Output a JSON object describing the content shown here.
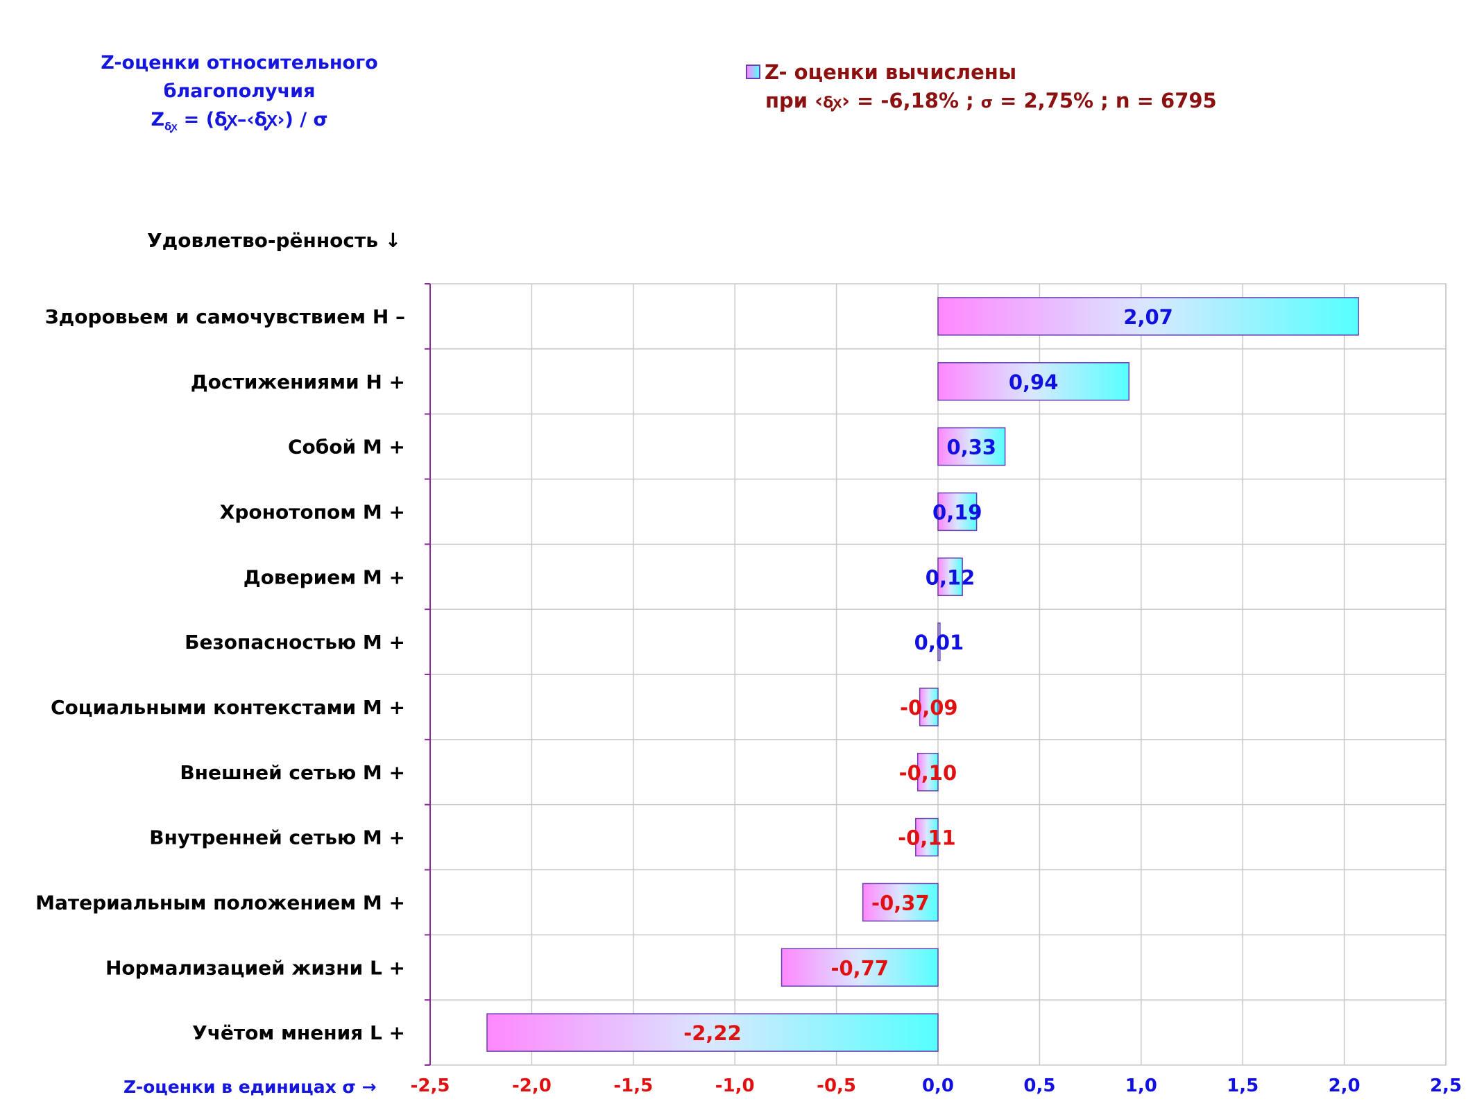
{
  "title": {
    "line1": "Z-оценки  относительного",
    "line2": "благополучия",
    "formula_z": "Z",
    "formula_sub": "δꭙ",
    "formula_rest": " = (δꭙ–‹δꭙ›)  / σ"
  },
  "legend": {
    "series_name": "Z- оценки вычислены",
    "params_prefix": "при ‹",
    "params_delta": "δꭙ",
    "params_rest": "›  = -6,18% ; ",
    "params_sigma": "σ",
    "params_tail": " = 2,75% ; n = 6795"
  },
  "y_caption": "Удовлетво-рённость ↓",
  "x_caption": "Z-оценки в единицах σ →",
  "colors": {
    "bar_gradient_start": "#ff88ff",
    "bar_gradient_end": "#55ffff",
    "bar_border": "#6a3fb0",
    "positive_label": "#1010e0",
    "negative_label": "#e01010",
    "grid": "#c8c8c8",
    "axis": "#8a2b9a"
  },
  "chart_data": {
    "type": "bar",
    "orientation": "horizontal",
    "categories": [
      "Здоровьем и самочувствием  H –",
      "Достижениями  H +",
      "Собой  M +",
      "Хронотопом  M +",
      "Доверием  M +",
      "Безопасностью  M +",
      "Социальными контекстами  M +",
      "Внешней сетью  M +",
      "Внутренней сетью  M +",
      "Материальным положением  M +",
      "Нормализацией жизни  L +",
      "Учётом мнения  L +"
    ],
    "values": [
      2.07,
      0.94,
      0.33,
      0.19,
      0.12,
      0.01,
      -0.09,
      -0.1,
      -0.11,
      -0.37,
      -0.77,
      -2.22
    ],
    "value_labels": [
      "2,07",
      "0,94",
      "0,33",
      "0,19",
      "0,12",
      "0,01",
      "-0,09",
      "-0,10",
      "-0,11",
      "-0,37",
      "-0,77",
      "-2,22"
    ],
    "xlim": [
      -2.5,
      2.5
    ],
    "xticks": [
      -2.5,
      -2.0,
      -1.5,
      -1.0,
      -0.5,
      0.0,
      0.5,
      1.0,
      1.5,
      2.0,
      2.5
    ],
    "xtick_labels": [
      "-2,5",
      "-2,0",
      "-1,5",
      "-1,0",
      "-0,5",
      "0,0",
      "0,5",
      "1,0",
      "1,5",
      "2,0",
      "2,5"
    ],
    "xlabel": "Z-оценки в единицах σ →",
    "ylabel": "Удовлетво-рённость ↓",
    "grid": true
  }
}
